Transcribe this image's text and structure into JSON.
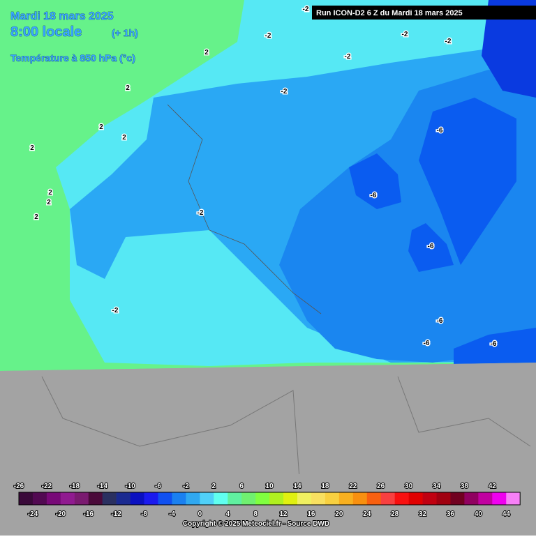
{
  "header": {
    "date": "Mardi 18 mars 2025",
    "time": "8:00 locale",
    "offset": "(+ 1h)",
    "field": "Température à 850 hPa (°c)",
    "run": "Run ICON-D2 6 Z du Mardi 18 mars 2025"
  },
  "contour_labels": [
    "-2",
    "-2",
    "-2",
    "-2",
    "-2",
    "-2",
    "2",
    "2",
    "2",
    "2",
    "2",
    "2",
    "2",
    "2",
    "-2",
    "-6",
    "-6",
    "-6",
    "-6",
    "-6",
    "-6",
    "-2"
  ],
  "scale": {
    "values": [
      -26,
      -24,
      -22,
      -20,
      -18,
      -16,
      -14,
      -12,
      -10,
      -8,
      -6,
      -4,
      -2,
      0,
      2,
      4,
      6,
      8,
      10,
      12,
      14,
      16,
      18,
      20,
      22,
      24,
      26,
      28,
      30,
      32,
      34,
      36,
      38,
      40,
      42,
      44
    ],
    "colors": [
      "#3a0a3a",
      "#520a52",
      "#780a78",
      "#901a90",
      "#7a1a70",
      "#4a0a3a",
      "#2a3060",
      "#1a2a90",
      "#0a10c0",
      "#1a1aee",
      "#1050f0",
      "#1a80f0",
      "#30a8f0",
      "#50d0f8",
      "#60fff0",
      "#60f0a0",
      "#70f070",
      "#80ff40",
      "#b0f020",
      "#e0f010",
      "#f0f060",
      "#f8e060",
      "#f8d040",
      "#f8b020",
      "#f89010",
      "#f86010",
      "#f84040",
      "#f81010",
      "#e00000",
      "#c00010",
      "#a00010",
      "#700020",
      "#900060",
      "#c000a0",
      "#f000f0",
      "#f880f8"
    ]
  },
  "footer": {
    "copyright": "Copyright © 2025 Meteociel.fr - Source DWD"
  }
}
